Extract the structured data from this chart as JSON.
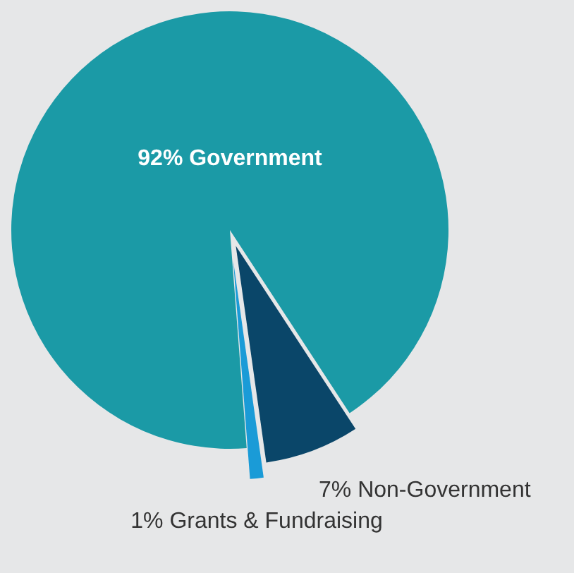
{
  "chart_data": {
    "type": "pie",
    "categories": [
      "Government",
      "Non-Government",
      "Grants & Fundraising"
    ],
    "values": [
      92,
      7,
      1
    ],
    "value_labels": [
      "92%",
      "7%",
      "1%"
    ],
    "colors": [
      "#1b9aa6",
      "#0a4669",
      "#1a9bd7"
    ]
  }
}
